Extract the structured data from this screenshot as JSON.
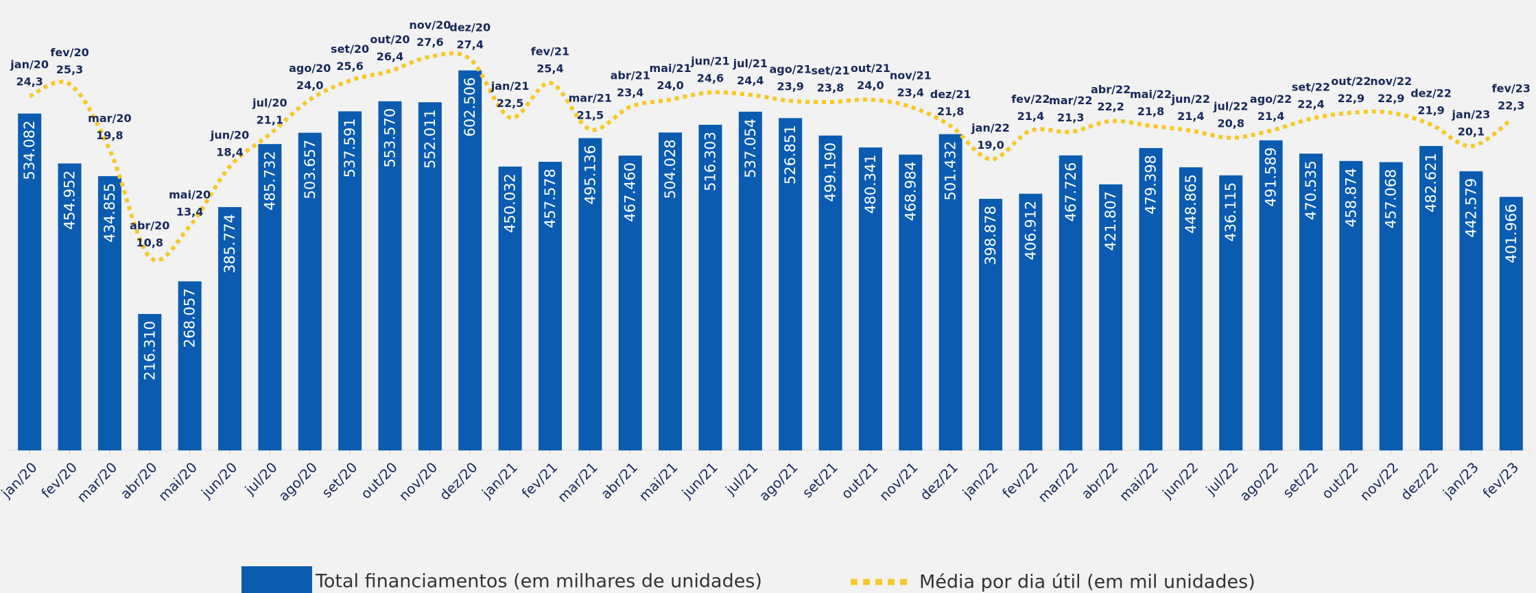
{
  "chart_data": {
    "type": "bar",
    "categories": [
      "jan/20",
      "fev/20",
      "mar/20",
      "abr/20",
      "mai/20",
      "jun/20",
      "jul/20",
      "ago/20",
      "set/20",
      "out/20",
      "nov/20",
      "dez/20",
      "jan/21",
      "fev/21",
      "mar/21",
      "abr/21",
      "mai/21",
      "jun/21",
      "jul/21",
      "ago/21",
      "set/21",
      "out/21",
      "nov/21",
      "dez/21",
      "jan/22",
      "fev/22",
      "mar/22",
      "abr/22",
      "mai/22",
      "jun/22",
      "jul/22",
      "ago/22",
      "set/22",
      "out/22",
      "nov/22",
      "dez/22",
      "jan/23",
      "fev/23"
    ],
    "series": [
      {
        "name": "Total financiamentos (em milhares de unidades)",
        "type": "bar",
        "color": "#0b5cb0",
        "values": [
          534.082,
          454.952,
          434.855,
          216.31,
          268.057,
          385.774,
          485.732,
          503.657,
          537.591,
          553.57,
          552.011,
          602.506,
          450.032,
          457.578,
          495.136,
          467.46,
          504.028,
          516.303,
          537.054,
          526.851,
          499.19,
          480.341,
          468.984,
          501.432,
          398.878,
          406.912,
          467.726,
          421.807,
          479.398,
          448.865,
          436.115,
          491.589,
          470.535,
          458.874,
          457.068,
          482.621,
          442.579,
          401.966
        ],
        "value_labels": [
          "534.082",
          "454.952",
          "434.855",
          "216.310",
          "268.057",
          "385.774",
          "485.732",
          "503.657",
          "537.591",
          "553.570",
          "552.011",
          "602.506",
          "450.032",
          "457.578",
          "495.136",
          "467.460",
          "504.028",
          "516.303",
          "537.054",
          "526.851",
          "499.190",
          "480.341",
          "468.984",
          "501.432",
          "398.878",
          "406.912",
          "467.726",
          "421.807",
          "479.398",
          "448.865",
          "436.115",
          "491.589",
          "470.535",
          "458.874",
          "457.068",
          "482.621",
          "442.579",
          "401.966"
        ]
      },
      {
        "name": "Média por dia útil (em mil unidades)",
        "type": "line",
        "color": "#f7c928",
        "values": [
          24.3,
          25.3,
          19.8,
          10.8,
          13.4,
          18.4,
          21.1,
          24.0,
          25.6,
          26.4,
          27.6,
          27.4,
          22.5,
          25.4,
          21.5,
          23.4,
          24.0,
          24.6,
          24.4,
          23.9,
          23.8,
          24.0,
          23.4,
          21.8,
          19.0,
          21.4,
          21.3,
          22.2,
          21.8,
          21.4,
          20.8,
          21.4,
          22.4,
          22.9,
          22.9,
          21.9,
          20.1,
          22.3
        ],
        "value_labels": [
          "24,3",
          "25,3",
          "19,8",
          "10,8",
          "13,4",
          "18,4",
          "21,1",
          "24,0",
          "25,6",
          "26,4",
          "27,6",
          "27,4",
          "22,5",
          "25,4",
          "21,5",
          "23,4",
          "24,0",
          "24,6",
          "24,4",
          "23,9",
          "23,8",
          "24,0",
          "23,4",
          "21,8",
          "19,0",
          "21,4",
          "21,3",
          "22,2",
          "21,8",
          "21,4",
          "20,8",
          "21,4",
          "22,4",
          "22,9",
          "22,9",
          "21,9",
          "20,1",
          "22,3"
        ]
      }
    ]
  }
}
